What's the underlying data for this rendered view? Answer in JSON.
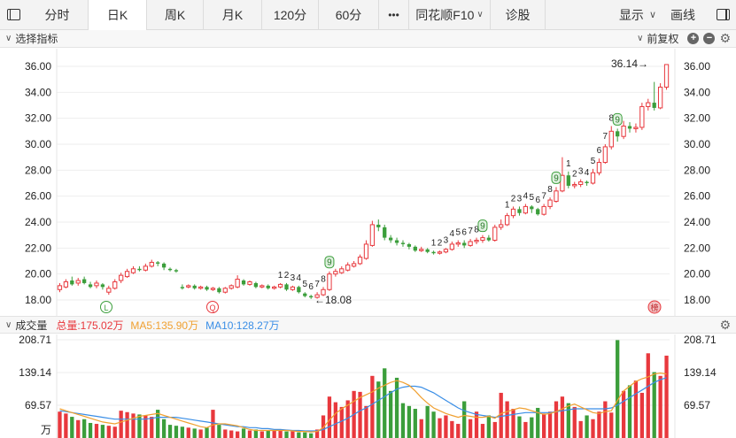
{
  "toolbar": {
    "tabs": [
      {
        "label": "分时",
        "w": 0
      },
      {
        "label": "日K"
      },
      {
        "label": "周K"
      },
      {
        "label": "月K"
      },
      {
        "label": "120分"
      },
      {
        "label": "60分"
      },
      {
        "label": "•••"
      },
      {
        "label": "同花顺F10"
      },
      {
        "label": "诊股"
      }
    ],
    "display_label": "显示",
    "draw_label": "画线"
  },
  "indicator_bar": {
    "select_label": "选择指标",
    "adjust_label": "前复权"
  },
  "price_axis": {
    "ticks": [
      "36.00",
      "34.00",
      "32.00",
      "30.00",
      "28.00",
      "26.00",
      "24.00",
      "22.00",
      "20.00",
      "18.00"
    ]
  },
  "annotations": {
    "high_label": "36.14→",
    "low_label": "←18.08",
    "marker_l": "L",
    "marker_q": "Q",
    "marker_bang": "榜"
  },
  "volume_bar": {
    "title": "成交量",
    "total": "总量:175.02万",
    "ma5": "MA5:135.90万",
    "ma10": "MA10:128.27万"
  },
  "volume_axis": {
    "ticks": [
      "208.71",
      "139.14",
      "69.57"
    ],
    "unit": "万"
  },
  "colors": {
    "up": "#e8383d",
    "down": "#3b9e3b",
    "ma5": "#f0a030",
    "ma10": "#3a8ee6"
  },
  "chart_data": {
    "type": "candlestick",
    "price_ylim": [
      17.5,
      36.6
    ],
    "volume_ylim": [
      0,
      208.71
    ],
    "candles": [
      [
        18.8,
        19.1,
        18.6,
        19.3
      ],
      [
        19.0,
        19.4,
        18.9,
        19.6
      ],
      [
        19.5,
        19.2,
        19.1,
        19.8
      ],
      [
        19.3,
        19.5,
        19.1,
        19.7
      ],
      [
        19.6,
        19.3,
        19.2,
        19.8
      ],
      [
        19.2,
        19.0,
        18.9,
        19.4
      ],
      [
        19.1,
        19.3,
        18.9,
        19.5
      ],
      [
        19.2,
        19.0,
        18.8,
        19.3
      ],
      [
        18.6,
        18.9,
        18.4,
        19.1
      ],
      [
        18.9,
        19.4,
        18.8,
        19.6
      ],
      [
        19.5,
        19.9,
        19.3,
        20.1
      ],
      [
        19.8,
        20.2,
        19.7,
        20.4
      ],
      [
        20.1,
        20.4,
        20.0,
        20.6
      ],
      [
        20.4,
        20.3,
        20.2,
        20.6
      ],
      [
        20.3,
        20.6,
        20.2,
        20.8
      ],
      [
        20.6,
        20.9,
        20.5,
        21.1
      ],
      [
        20.9,
        20.8,
        20.6,
        21.0
      ],
      [
        20.8,
        20.5,
        20.3,
        20.9
      ],
      [
        20.4,
        20.3,
        20.2,
        20.5
      ],
      [
        20.3,
        20.2,
        20.1,
        20.4
      ],
      [
        19.0,
        18.9,
        18.8,
        19.2
      ],
      [
        19.0,
        19.1,
        18.9,
        19.2
      ],
      [
        19.1,
        18.9,
        18.8,
        19.2
      ],
      [
        18.9,
        19.0,
        18.8,
        19.1
      ],
      [
        19.0,
        18.8,
        18.7,
        19.1
      ],
      [
        18.8,
        18.9,
        18.7,
        19.0
      ],
      [
        18.9,
        18.6,
        18.5,
        19.0
      ],
      [
        18.6,
        18.9,
        18.5,
        19.0
      ],
      [
        18.9,
        19.1,
        18.8,
        19.2
      ],
      [
        19.0,
        19.6,
        18.9,
        19.9
      ],
      [
        19.5,
        19.2,
        19.1,
        19.6
      ],
      [
        19.2,
        19.4,
        19.1,
        19.5
      ],
      [
        19.3,
        19.0,
        18.9,
        19.4
      ],
      [
        19.0,
        19.1,
        18.9,
        19.2
      ],
      [
        19.1,
        18.9,
        18.8,
        19.2
      ],
      [
        18.9,
        19.0,
        18.8,
        19.1
      ],
      [
        19.0,
        19.2,
        18.9,
        19.3
      ],
      [
        19.2,
        18.8,
        18.7,
        19.3
      ],
      [
        18.8,
        19.0,
        18.7,
        19.1
      ],
      [
        19.0,
        18.6,
        18.5,
        19.1
      ],
      [
        18.5,
        18.3,
        18.2,
        18.6
      ],
      [
        18.3,
        18.2,
        18.08,
        18.4
      ],
      [
        18.2,
        18.4,
        18.1,
        18.6
      ],
      [
        18.4,
        18.8,
        18.3,
        19.0
      ],
      [
        18.8,
        20.0,
        18.7,
        20.2
      ],
      [
        20.0,
        20.2,
        19.8,
        20.4
      ],
      [
        20.1,
        20.4,
        20.0,
        20.6
      ],
      [
        20.3,
        20.7,
        20.2,
        20.9
      ],
      [
        20.6,
        20.8,
        20.5,
        21.0
      ],
      [
        20.8,
        21.3,
        20.7,
        21.5
      ],
      [
        21.2,
        22.3,
        21.1,
        22.6
      ],
      [
        22.2,
        23.8,
        22.1,
        24.1
      ],
      [
        23.8,
        23.6,
        23.3,
        24.2
      ],
      [
        23.6,
        22.8,
        22.6,
        23.8
      ],
      [
        22.8,
        22.6,
        22.4,
        23.0
      ],
      [
        22.6,
        22.4,
        22.2,
        22.8
      ],
      [
        22.4,
        22.3,
        22.1,
        22.6
      ],
      [
        22.3,
        22.1,
        21.9,
        22.4
      ],
      [
        22.1,
        21.8,
        21.7,
        22.2
      ],
      [
        21.8,
        21.9,
        21.7,
        22.1
      ],
      [
        21.9,
        21.7,
        21.6,
        22.0
      ],
      [
        21.7,
        21.6,
        21.5,
        21.8
      ],
      [
        21.6,
        21.7,
        21.5,
        21.8
      ],
      [
        21.7,
        21.9,
        21.6,
        22.0
      ],
      [
        21.9,
        22.3,
        21.8,
        22.5
      ],
      [
        22.3,
        22.4,
        22.1,
        22.6
      ],
      [
        22.4,
        22.2,
        22.0,
        22.6
      ],
      [
        22.2,
        22.5,
        22.1,
        22.7
      ],
      [
        22.5,
        22.6,
        22.3,
        22.8
      ],
      [
        22.6,
        22.8,
        22.4,
        23.0
      ],
      [
        22.8,
        22.6,
        22.5,
        23.0
      ],
      [
        22.6,
        23.6,
        22.5,
        23.8
      ],
      [
        23.6,
        23.8,
        23.4,
        24.2
      ],
      [
        23.8,
        24.5,
        23.7,
        24.7
      ],
      [
        24.5,
        25.0,
        24.3,
        25.2
      ],
      [
        25.0,
        24.7,
        24.5,
        25.2
      ],
      [
        24.7,
        25.2,
        24.6,
        25.4
      ],
      [
        25.2,
        25.0,
        24.7,
        25.3
      ],
      [
        25.0,
        24.6,
        24.5,
        25.1
      ],
      [
        24.6,
        25.2,
        24.5,
        25.4
      ],
      [
        25.2,
        25.7,
        25.0,
        25.9
      ],
      [
        25.6,
        26.4,
        25.5,
        26.7
      ],
      [
        26.4,
        27.6,
        26.3,
        29.0
      ],
      [
        27.6,
        26.8,
        26.6,
        27.9
      ],
      [
        26.8,
        26.9,
        26.6,
        27.1
      ],
      [
        26.9,
        27.1,
        26.7,
        27.3
      ],
      [
        27.1,
        27.0,
        26.8,
        27.2
      ],
      [
        27.0,
        27.8,
        26.9,
        28.1
      ],
      [
        27.8,
        28.6,
        27.6,
        28.9
      ],
      [
        28.6,
        29.8,
        28.5,
        30.0
      ],
      [
        29.8,
        31.0,
        29.6,
        31.4
      ],
      [
        31.0,
        30.6,
        30.2,
        31.2
      ],
      [
        30.6,
        31.4,
        30.4,
        31.8
      ],
      [
        31.4,
        31.2,
        30.9,
        31.7
      ],
      [
        31.2,
        31.3,
        30.9,
        31.6
      ],
      [
        31.3,
        32.9,
        31.1,
        33.2
      ],
      [
        32.9,
        33.2,
        32.6,
        33.5
      ],
      [
        33.2,
        32.8,
        32.6,
        34.8
      ],
      [
        32.8,
        34.4,
        32.7,
        34.7
      ],
      [
        34.4,
        36.14,
        34.2,
        36.14
      ]
    ],
    "volumes": [
      56,
      52,
      45,
      38,
      40,
      32,
      30,
      28,
      26,
      24,
      58,
      55,
      52,
      50,
      48,
      45,
      60,
      40,
      28,
      26,
      24,
      22,
      20,
      18,
      22,
      60,
      28,
      18,
      16,
      14,
      20,
      16,
      18,
      14,
      16,
      15,
      16,
      14,
      14,
      12,
      12,
      10,
      18,
      48,
      88,
      76,
      66,
      80,
      100,
      98,
      68,
      132,
      120,
      148,
      100,
      128,
      74,
      68,
      62,
      40,
      68,
      56,
      42,
      48,
      36,
      30,
      78,
      40,
      56,
      30,
      48,
      34,
      96,
      78,
      62,
      46,
      34,
      44,
      64,
      52,
      56,
      78,
      88,
      74,
      66,
      36,
      48,
      40,
      56,
      78,
      54,
      208,
      100,
      112,
      122,
      96,
      180,
      140,
      132,
      175
    ],
    "ma5": [
      62,
      58,
      54,
      50,
      46,
      42,
      38,
      34,
      32,
      30,
      34,
      38,
      42,
      46,
      48,
      50,
      52,
      48,
      44,
      40,
      36,
      32,
      28,
      24,
      22,
      28,
      30,
      30,
      28,
      26,
      22,
      18,
      16,
      16,
      16,
      16,
      16,
      16,
      15,
      14,
      14,
      13,
      14,
      22,
      38,
      52,
      62,
      70,
      78,
      86,
      92,
      98,
      106,
      112,
      118,
      122,
      118,
      112,
      100,
      86,
      74,
      64,
      58,
      52,
      48,
      44,
      48,
      46,
      44,
      44,
      46,
      42,
      52,
      56,
      60,
      64,
      62,
      58,
      54,
      50,
      52,
      56,
      62,
      68,
      72,
      66,
      60,
      54,
      52,
      56,
      58,
      80,
      100,
      110,
      120,
      126,
      130,
      136,
      138,
      136
    ],
    "ma10": [
      58,
      56,
      54,
      52,
      50,
      48,
      46,
      44,
      42,
      40,
      40,
      40,
      40,
      40,
      40,
      42,
      44,
      44,
      44,
      44,
      42,
      40,
      38,
      36,
      34,
      32,
      30,
      28,
      26,
      24,
      24,
      22,
      22,
      20,
      20,
      18,
      18,
      17,
      16,
      16,
      15,
      15,
      15,
      18,
      24,
      30,
      36,
      42,
      50,
      58,
      64,
      72,
      80,
      88,
      96,
      104,
      108,
      110,
      110,
      108,
      102,
      96,
      88,
      80,
      72,
      64,
      58,
      54,
      50,
      48,
      46,
      44,
      46,
      48,
      50,
      52,
      54,
      54,
      54,
      54,
      54,
      56,
      58,
      60,
      62,
      62,
      62,
      62,
      62,
      62,
      64,
      70,
      78,
      86,
      94,
      102,
      110,
      118,
      124,
      128
    ]
  }
}
